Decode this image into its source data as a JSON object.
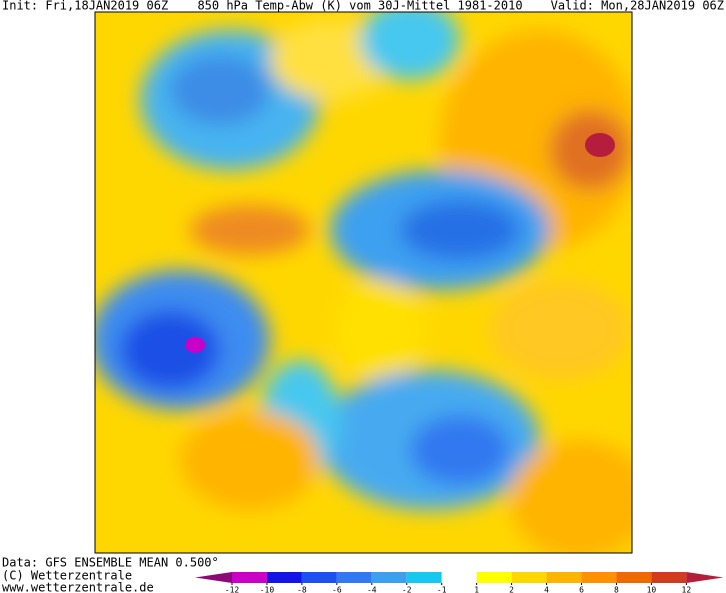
{
  "header": {
    "init": "Init: Fri,18JAN2019 06Z",
    "title": "850 hPa Temp-Abw (K) vom 30J-Mittel 1981-2010",
    "valid": "Valid: Mon,28JAN2019 06Z"
  },
  "footer": {
    "data": "Data: GFS ENSEMBLE MEAN 0.500°",
    "copyright": "(C) Wetterzentrale",
    "url": "www.wetterzentrale.de"
  },
  "colorbar": {
    "ticks": [
      -12,
      -10,
      -8,
      -6,
      -4,
      -2,
      -1,
      1,
      2,
      4,
      6,
      8,
      10,
      12
    ],
    "colors": [
      "#8c0a78",
      "#c800c8",
      "#1414e6",
      "#1e50f0",
      "#3278f0",
      "#3ca0f0",
      "#14c8f0",
      "#ffffff",
      "#ffff00",
      "#ffd700",
      "#ffb400",
      "#ff9100",
      "#ee6a00",
      "#d23c1e",
      "#b41e3c"
    ]
  }
}
